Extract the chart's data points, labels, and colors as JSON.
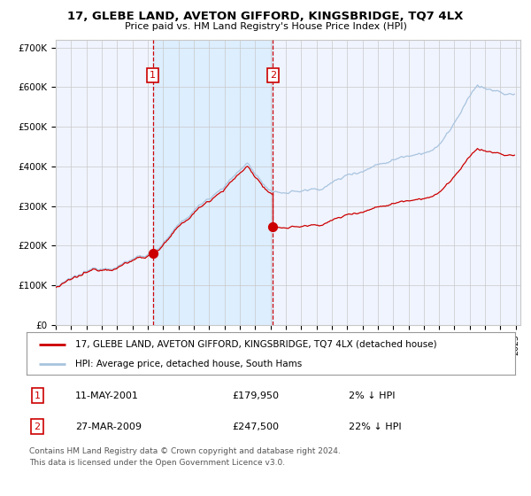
{
  "title": "17, GLEBE LAND, AVETON GIFFORD, KINGSBRIDGE, TQ7 4LX",
  "subtitle": "Price paid vs. HM Land Registry's House Price Index (HPI)",
  "legend_line1": "17, GLEBE LAND, AVETON GIFFORD, KINGSBRIDGE, TQ7 4LX (detached house)",
  "legend_line2": "HPI: Average price, detached house, South Hams",
  "sale1_date": "11-MAY-2001",
  "sale1_price": 179950,
  "sale2_date": "27-MAR-2009",
  "sale2_price": 247500,
  "sale1_pct": "2% ↓ HPI",
  "sale2_pct": "22% ↓ HPI",
  "sale1_price_str": "£179,950",
  "sale2_price_str": "£247,500",
  "footnote_line1": "Contains HM Land Registry data © Crown copyright and database right 2024.",
  "footnote_line2": "This data is licensed under the Open Government Licence v3.0.",
  "hpi_color": "#a8c4de",
  "price_color": "#cc0000",
  "vline_color": "#cc0000",
  "shade_color": "#ddeeff",
  "bg_color": "#f0f4ff",
  "grid_color": "#c8c8c8",
  "ylim": [
    0,
    720000
  ],
  "yticks": [
    0,
    100000,
    200000,
    300000,
    400000,
    500000,
    600000,
    700000
  ],
  "ytick_labels": [
    "£0",
    "£100K",
    "£200K",
    "£300K",
    "£400K",
    "£500K",
    "£600K",
    "£700K"
  ]
}
